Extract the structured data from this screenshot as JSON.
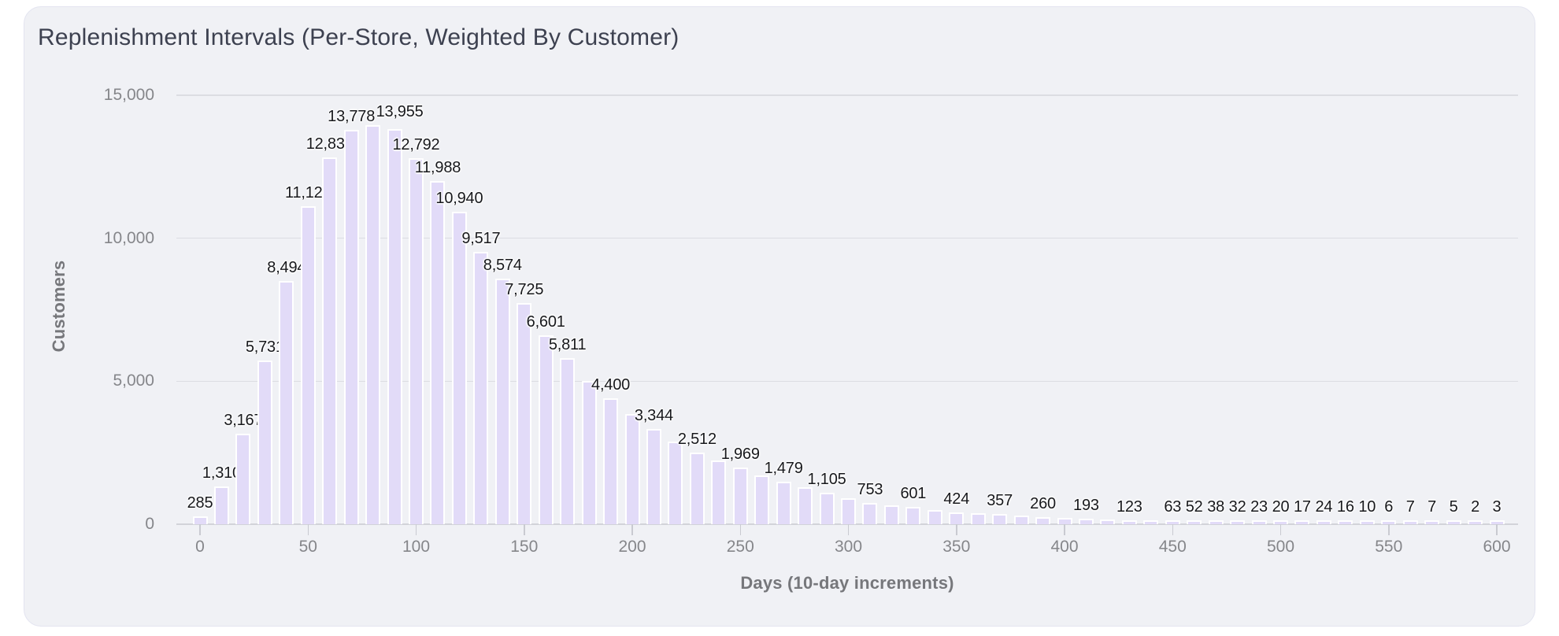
{
  "card": {
    "title": "Replenishment Intervals (Per-Store, Weighted By Customer)"
  },
  "theme": {
    "page-bg": "#ffffff",
    "card-bg": "#f0f1f5",
    "card-border": "#e3e4f0",
    "bar-color": "#e2dbf8",
    "bar-border": "#ffffff",
    "grid": "#dcdde2",
    "axis": "#d2d3d9",
    "tick-text": "#85868a",
    "label-text": "#17181c",
    "title-color": "#3d4150",
    "axis-title": "#76777b"
  },
  "chart_data": {
    "type": "bar",
    "title": "Replenishment Intervals (Per-Store, Weighted By Customer)",
    "xlabel": "Days (10-day increments)",
    "ylabel": "Customers",
    "ylim": [
      0,
      15000
    ],
    "grid": true,
    "yticks": [
      0,
      5000,
      10000,
      15000
    ],
    "ytick_labels": [
      "0",
      "5,000",
      "10,000",
      "15,000"
    ],
    "xticks": [
      0,
      50,
      100,
      150,
      200,
      250,
      300,
      350,
      400,
      450,
      500,
      550,
      600
    ],
    "x_step": 10,
    "x": [
      0,
      10,
      20,
      30,
      40,
      50,
      60,
      70,
      80,
      90,
      100,
      110,
      120,
      130,
      140,
      150,
      160,
      170,
      180,
      190,
      200,
      210,
      220,
      230,
      240,
      250,
      260,
      270,
      280,
      290,
      300,
      310,
      320,
      330,
      340,
      350,
      360,
      370,
      380,
      390,
      400,
      410,
      420,
      430,
      440,
      450,
      460,
      470,
      480,
      490,
      500,
      510,
      520,
      530,
      540,
      550,
      560,
      570,
      580,
      590,
      600
    ],
    "values": [
      285,
      1310,
      3167,
      5731,
      8494,
      11121,
      12834,
      13778,
      13955,
      13810,
      12792,
      11988,
      10940,
      9517,
      8574,
      7725,
      6601,
      5811,
      5020,
      4400,
      3850,
      3344,
      2900,
      2512,
      2220,
      1969,
      1710,
      1479,
      1280,
      1105,
      920,
      753,
      670,
      601,
      500,
      424,
      390,
      357,
      300,
      260,
      225,
      193,
      155,
      123,
      90,
      63,
      52,
      38,
      32,
      23,
      20,
      17,
      24,
      16,
      10,
      6,
      7,
      7,
      5,
      2,
      3
    ],
    "labels": [
      "285",
      "1,310",
      "3,167",
      "5,731",
      "8,494",
      "11,121",
      "12,834",
      "13,778",
      "13,955",
      null,
      "12,792",
      "11,988",
      "10,940",
      "9,517",
      "8,574",
      "7,725",
      "6,601",
      "5,811",
      null,
      "4,400",
      null,
      "3,344",
      null,
      "2,512",
      null,
      "1,969",
      null,
      "1,479",
      null,
      "1,105",
      null,
      "753",
      null,
      "601",
      null,
      "424",
      null,
      "357",
      null,
      "260",
      null,
      "193",
      null,
      "123",
      null,
      "63",
      "52",
      "38",
      "32",
      "23",
      "20",
      "17",
      "24",
      "16",
      "10",
      "6",
      "7",
      "7",
      "5",
      "2",
      "3"
    ],
    "label_dx": {
      "80": 34
    }
  }
}
